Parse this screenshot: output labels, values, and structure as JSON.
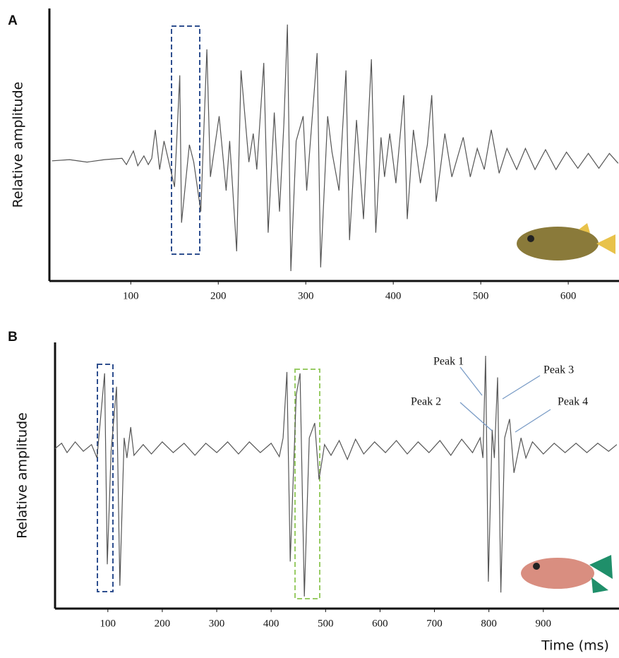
{
  "chart_data": [
    {
      "type": "line",
      "panel": "A",
      "y_label": "Relative amplitude",
      "color": "#555555",
      "x": [
        10,
        30,
        50,
        70,
        90,
        95,
        103,
        108,
        115,
        120,
        124,
        128,
        133,
        138,
        150,
        156,
        158,
        167,
        172,
        180,
        187,
        191,
        201,
        209,
        213,
        221,
        226,
        235,
        240,
        244,
        252,
        257,
        264,
        270,
        275,
        279,
        283,
        289,
        297,
        301,
        313,
        317,
        325,
        330,
        338,
        346,
        350,
        358,
        366,
        375,
        380,
        386,
        390,
        396,
        403,
        412,
        416,
        423,
        431,
        439,
        444,
        449,
        459,
        467,
        480,
        488,
        496,
        504,
        512,
        521,
        530,
        541,
        551,
        562,
        574,
        586,
        598,
        611,
        623,
        635,
        647,
        657
      ],
      "values": [
        0,
        0.01,
        -0.01,
        0.01,
        0.02,
        -0.03,
        0.08,
        -0.04,
        0.04,
        -0.03,
        0.02,
        0.25,
        -0.07,
        0.16,
        -0.21,
        0.69,
        -0.5,
        0.13,
        -0.01,
        -0.41,
        0.9,
        -0.13,
        0.36,
        -0.24,
        0.16,
        -0.73,
        0.73,
        -0.01,
        0.22,
        -0.07,
        0.79,
        -0.58,
        0.39,
        -0.41,
        0.3,
        1.1,
        -0.89,
        0.16,
        0.36,
        -0.24,
        0.87,
        -0.86,
        0.36,
        0.07,
        -0.24,
        0.73,
        -0.64,
        0.33,
        -0.47,
        0.82,
        -0.58,
        0.19,
        -0.13,
        0.22,
        -0.18,
        0.53,
        -0.47,
        0.25,
        -0.18,
        0.13,
        0.53,
        -0.33,
        0.22,
        -0.13,
        0.19,
        -0.13,
        0.1,
        -0.07,
        0.25,
        -0.1,
        0.1,
        -0.07,
        0.1,
        -0.07,
        0.09,
        -0.07,
        0.07,
        -0.06,
        0.06,
        -0.06,
        0.06,
        -0.02
      ],
      "xlim": [
        7,
        658
      ],
      "ylim": [
        -0.97,
        1.23
      ],
      "xticks": [
        100,
        200,
        300,
        400,
        500,
        600
      ]
    },
    {
      "type": "line",
      "panel": "B",
      "y_label": "Relative amplitude",
      "x_label": "Time (ms)",
      "color": "#555555",
      "x": [
        3,
        15,
        25,
        40,
        55,
        70,
        80,
        94,
        99,
        106,
        116,
        122,
        130,
        135,
        142,
        148,
        165,
        180,
        200,
        220,
        240,
        260,
        280,
        300,
        320,
        340,
        360,
        380,
        400,
        415,
        422,
        429,
        435,
        446,
        453,
        461,
        470,
        480,
        488,
        498,
        510,
        525,
        540,
        555,
        570,
        590,
        610,
        630,
        650,
        670,
        690,
        710,
        730,
        750,
        770,
        784,
        789,
        794,
        799,
        806,
        810,
        816,
        822,
        829,
        838,
        846,
        859,
        868,
        880,
        900,
        920,
        940,
        960,
        980,
        1000,
        1020,
        1035
      ],
      "values": [
        0,
        0.04,
        -0.03,
        0.05,
        -0.02,
        0.03,
        -0.07,
        0.56,
        -0.86,
        -0.02,
        0.46,
        -1.02,
        0.08,
        -0.07,
        0.16,
        -0.05,
        0.03,
        -0.04,
        0.05,
        -0.03,
        0.04,
        -0.05,
        0.04,
        -0.03,
        0.05,
        -0.04,
        0.05,
        -0.03,
        0.04,
        -0.06,
        0.08,
        0.57,
        -0.84,
        0.4,
        0.56,
        -1.1,
        0.08,
        0.19,
        -0.23,
        0.03,
        -0.05,
        0.06,
        -0.08,
        0.07,
        -0.04,
        0.05,
        -0.03,
        0.06,
        -0.04,
        0.05,
        -0.03,
        0.06,
        -0.05,
        0.07,
        -0.03,
        0.08,
        -0.07,
        0.69,
        -0.99,
        0.14,
        -0.07,
        0.53,
        -1.07,
        0.08,
        0.22,
        -0.18,
        0.08,
        -0.07,
        0.05,
        -0.04,
        0.04,
        -0.03,
        0.04,
        -0.03,
        0.04,
        -0.02,
        0.03
      ],
      "xlim": [
        3,
        1039
      ],
      "ylim": [
        -1.19,
        0.79
      ],
      "xticks": [
        100,
        200,
        300,
        400,
        500,
        600,
        700,
        800,
        900
      ],
      "annotations": [
        "Peak 1",
        "Peak 2",
        "Peak 3",
        "Peak 4"
      ]
    }
  ]
}
